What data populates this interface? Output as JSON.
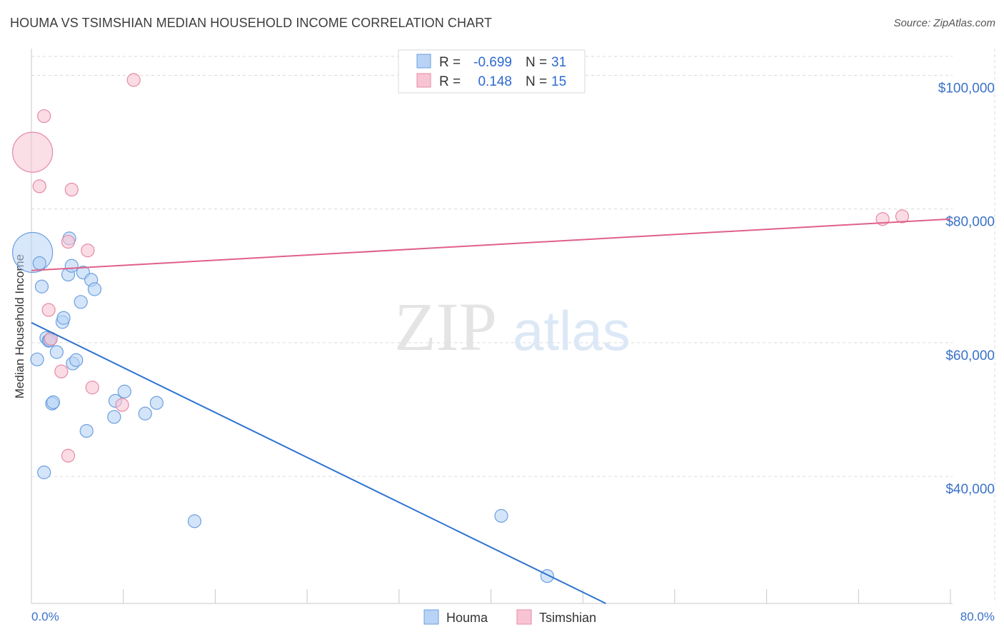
{
  "title": "HOUMA VS TSIMSHIAN MEDIAN HOUSEHOLD INCOME CORRELATION CHART",
  "source": "Source: ZipAtlas.com",
  "watermark": {
    "zip": "ZIP",
    "atlas": "atlas"
  },
  "colors": {
    "houma_fill": "#b8d3f5",
    "houma_stroke": "#6c9fe0",
    "houma_line": "#2e74d0",
    "tsimshian_fill": "#f8c4d4",
    "tsimshian_stroke": "#e58aa6",
    "tsimshian_line": "#e0608a",
    "axis_label": "#3a72c8",
    "grid": "#dadada"
  },
  "legend_box": {
    "rows": [
      {
        "r_label": "R =",
        "r_value": "-0.699",
        "n_label": "N =",
        "n_value": "31"
      },
      {
        "r_label": "R =",
        "r_value": "0.148",
        "n_label": "N =",
        "n_value": "15"
      }
    ]
  },
  "bottom_legend": {
    "houma": "Houma",
    "tsimshian": "Tsimshian"
  },
  "chart_data": {
    "type": "scatter",
    "title": "HOUMA VS TSIMSHIAN MEDIAN HOUSEHOLD INCOME CORRELATION CHART",
    "xlabel": "",
    "ylabel": "Median Household Income",
    "xlim": [
      0,
      80
    ],
    "ylim": [
      21000,
      104000
    ],
    "x_tick_labels": [
      "0.0%",
      "80.0%"
    ],
    "y_ticks": [
      40000,
      60000,
      80000,
      100000
    ],
    "y_tick_labels": [
      "$40,000",
      "$60,000",
      "$80,000",
      "$100,000"
    ],
    "grid": true,
    "series": [
      {
        "name": "Houma",
        "r": -0.699,
        "n": 31,
        "trend": {
          "x": [
            0,
            50
          ],
          "y": [
            63000,
            21000
          ]
        },
        "points": [
          {
            "x": 0.1,
            "y": 73500,
            "big": true
          },
          {
            "x": 0.7,
            "y": 71900
          },
          {
            "x": 0.9,
            "y": 68400
          },
          {
            "x": 0.5,
            "y": 57500
          },
          {
            "x": 1.3,
            "y": 60700
          },
          {
            "x": 1.5,
            "y": 60300
          },
          {
            "x": 1.6,
            "y": 60400
          },
          {
            "x": 1.1,
            "y": 40600
          },
          {
            "x": 1.8,
            "y": 50900
          },
          {
            "x": 1.9,
            "y": 51100
          },
          {
            "x": 2.2,
            "y": 58600
          },
          {
            "x": 2.7,
            "y": 63100
          },
          {
            "x": 2.8,
            "y": 63700
          },
          {
            "x": 3.2,
            "y": 70200
          },
          {
            "x": 3.3,
            "y": 75600
          },
          {
            "x": 3.5,
            "y": 71500
          },
          {
            "x": 3.6,
            "y": 56900
          },
          {
            "x": 3.9,
            "y": 57400
          },
          {
            "x": 4.3,
            "y": 66100
          },
          {
            "x": 4.5,
            "y": 70500
          },
          {
            "x": 4.8,
            "y": 46800
          },
          {
            "x": 5.2,
            "y": 69400
          },
          {
            "x": 5.5,
            "y": 68000
          },
          {
            "x": 7.2,
            "y": 48900
          },
          {
            "x": 7.3,
            "y": 51300
          },
          {
            "x": 8.1,
            "y": 52700
          },
          {
            "x": 9.9,
            "y": 49400
          },
          {
            "x": 10.9,
            "y": 51000
          },
          {
            "x": 14.2,
            "y": 33300
          },
          {
            "x": 40.9,
            "y": 34100
          },
          {
            "x": 44.9,
            "y": 25100
          }
        ]
      },
      {
        "name": "Tsimshian",
        "r": 0.148,
        "n": 15,
        "trend": {
          "x": [
            0,
            80
          ],
          "y": [
            70800,
            78500
          ]
        },
        "points": [
          {
            "x": 0.1,
            "y": 88500,
            "big": true
          },
          {
            "x": 0.7,
            "y": 83400
          },
          {
            "x": 1.1,
            "y": 93900
          },
          {
            "x": 1.5,
            "y": 64900
          },
          {
            "x": 1.7,
            "y": 60600
          },
          {
            "x": 2.6,
            "y": 55700
          },
          {
            "x": 3.2,
            "y": 75100
          },
          {
            "x": 3.2,
            "y": 43100
          },
          {
            "x": 3.5,
            "y": 82900
          },
          {
            "x": 4.9,
            "y": 73800
          },
          {
            "x": 5.3,
            "y": 53300
          },
          {
            "x": 7.9,
            "y": 50700
          },
          {
            "x": 8.9,
            "y": 99300
          },
          {
            "x": 74.1,
            "y": 78500
          },
          {
            "x": 75.8,
            "y": 78900
          }
        ]
      }
    ]
  }
}
